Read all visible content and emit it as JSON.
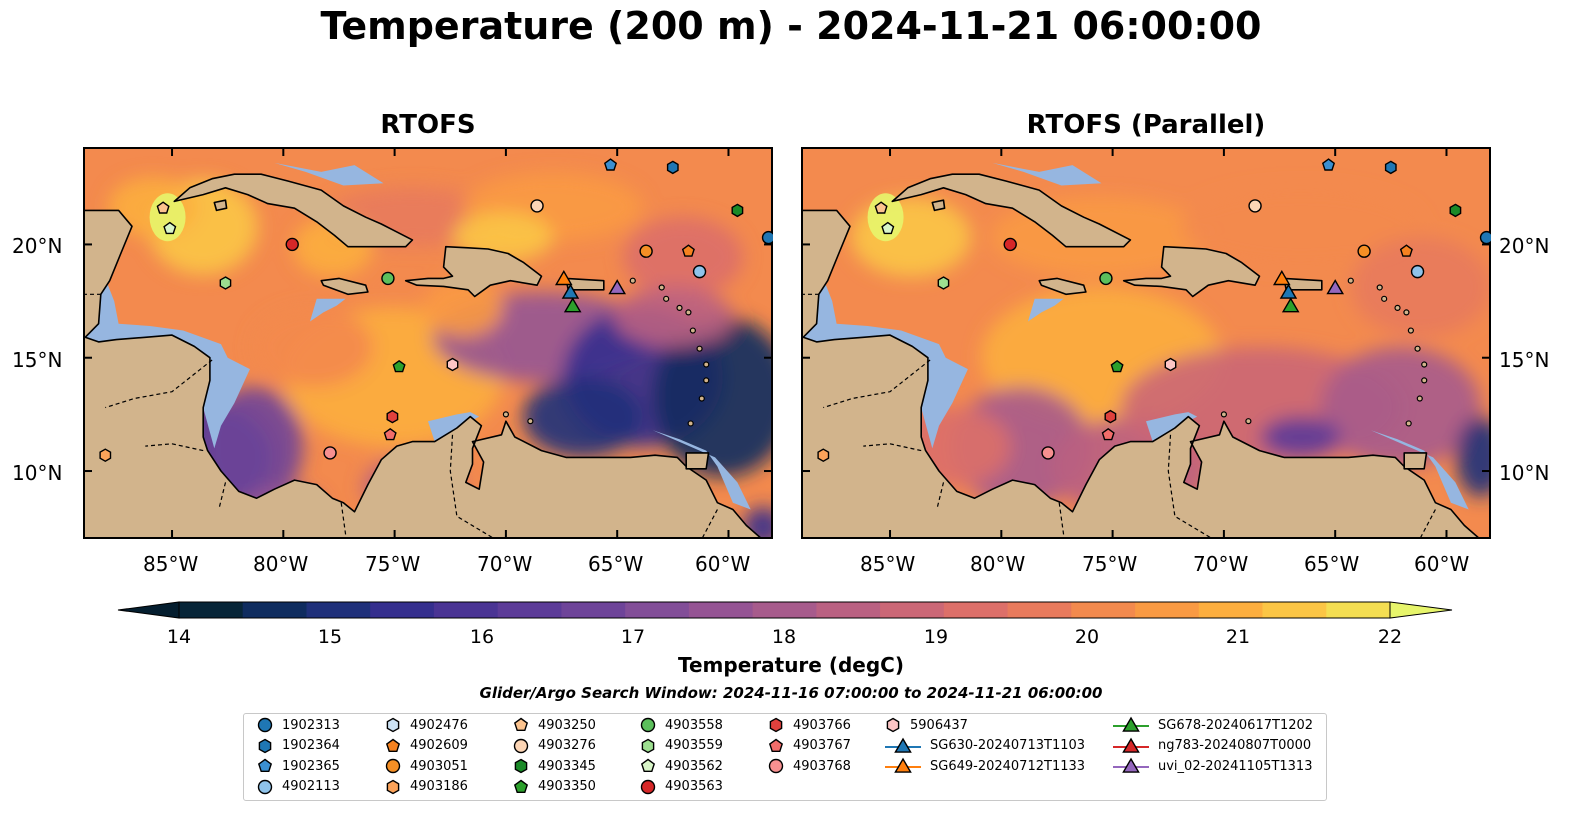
{
  "title": "Temperature (200 m) - 2024-11-21 06:00:00",
  "panels": [
    {
      "title": "RTOFS",
      "variant": "main"
    },
    {
      "title": "RTOFS (Parallel)",
      "variant": "parallel"
    }
  ],
  "map_extent": {
    "lon": [
      -89,
      -58
    ],
    "lat": [
      7,
      24.3
    ]
  },
  "lon_ticks": [
    "85°W",
    "80°W",
    "75°W",
    "70°W",
    "65°W",
    "60°W"
  ],
  "lat_ticks": [
    "20°N",
    "15°N",
    "10°N"
  ],
  "colorbar": {
    "label": "Temperature (degC)",
    "ticks": [
      "14",
      "15",
      "16",
      "17",
      "18",
      "19",
      "20",
      "21",
      "22"
    ],
    "range": [
      14,
      22
    ],
    "colors": [
      "#072538",
      "#0f2c5f",
      "#1f307a",
      "#352f8e",
      "#4a3494",
      "#5c3b98",
      "#6e4499",
      "#824e98",
      "#955494",
      "#a75b8c",
      "#ba6182",
      "#cb6776",
      "#dc6f69",
      "#e87a5c",
      "#f38a4e",
      "#f99a43",
      "#fcae3f",
      "#fbc545",
      "#f4de52"
    ],
    "under_color": "#051e2f",
    "over_color": "#e7f56b"
  },
  "colors": {
    "land": "#d2b48c",
    "shelf": "#96b6e0"
  },
  "search_window": "Glider/Argo Search Window: 2024-11-16 07:00:00 to 2024-11-21 06:00:00",
  "legend": [
    {
      "label": "1902313",
      "marker": "circle",
      "color": "#1f77b4"
    },
    {
      "label": "1902364",
      "marker": "hexagon",
      "color": "#1f77b4"
    },
    {
      "label": "1902365",
      "marker": "pentagon",
      "color": "#3b8fd0"
    },
    {
      "label": "4902113",
      "marker": "circle",
      "color": "#8fc3ea"
    },
    {
      "label": "4902476",
      "marker": "hexagon",
      "color": "#cde3f5"
    },
    {
      "label": "4902609",
      "marker": "pentagon",
      "color": "#f58220"
    },
    {
      "label": "4903051",
      "marker": "circle",
      "color": "#f58f25"
    },
    {
      "label": "4903186",
      "marker": "hexagon",
      "color": "#fca35a"
    },
    {
      "label": "4903250",
      "marker": "pentagon",
      "color": "#fcc38e"
    },
    {
      "label": "4903276",
      "marker": "circle",
      "color": "#fcd5b5"
    },
    {
      "label": "4903345",
      "marker": "hexagon",
      "color": "#1b8a28"
    },
    {
      "label": "4903350",
      "marker": "pentagon",
      "color": "#2ca02c"
    },
    {
      "label": "4903558",
      "marker": "circle",
      "color": "#5cbf5c"
    },
    {
      "label": "4903559",
      "marker": "hexagon",
      "color": "#9ddf90"
    },
    {
      "label": "4903562",
      "marker": "pentagon",
      "color": "#d8f5c8"
    },
    {
      "label": "4903563",
      "marker": "circle",
      "color": "#d62728"
    },
    {
      "label": "4903766",
      "marker": "hexagon",
      "color": "#e0413d"
    },
    {
      "label": "4903767",
      "marker": "pentagon",
      "color": "#f26d6a"
    },
    {
      "label": "4903768",
      "marker": "circle",
      "color": "#f79090"
    },
    {
      "label": "5906437",
      "marker": "hexagon",
      "color": "#fcc5c5"
    },
    {
      "label": "SG630-20240713T1103",
      "marker": "triangle",
      "color": "#1f77b4"
    },
    {
      "label": "SG649-20240712T1133",
      "marker": "triangle",
      "color": "#ff7f0e"
    },
    {
      "label": "SG678-20240617T1202",
      "marker": "triangle",
      "color": "#2ca02c"
    },
    {
      "label": "ng783-20240807T0000",
      "marker": "triangle",
      "color": "#d62728"
    },
    {
      "label": "uvi_02-20241105T1313",
      "marker": "triangle",
      "color": "#9467bd"
    }
  ],
  "observations": [
    {
      "id": "1902313",
      "lon": -58.2,
      "lat": 20.3
    },
    {
      "id": "1902364",
      "lon": -62.5,
      "lat": 23.4
    },
    {
      "id": "1902365",
      "lon": -65.3,
      "lat": 23.5
    },
    {
      "id": "4902113",
      "lon": -61.3,
      "lat": 18.8
    },
    {
      "id": "4902609",
      "lon": -61.8,
      "lat": 19.7
    },
    {
      "id": "4903051",
      "lon": -63.7,
      "lat": 19.7
    },
    {
      "id": "4903186",
      "lon": -88.0,
      "lat": 10.7
    },
    {
      "id": "4903250",
      "lon": -85.4,
      "lat": 21.6
    },
    {
      "id": "4903276",
      "lon": -68.6,
      "lat": 21.7
    },
    {
      "id": "4903345",
      "lon": -59.6,
      "lat": 21.5
    },
    {
      "id": "4903350",
      "lon": -74.8,
      "lat": 14.6
    },
    {
      "id": "4903558",
      "lon": -75.3,
      "lat": 18.5
    },
    {
      "id": "4903559",
      "lon": -82.6,
      "lat": 18.3
    },
    {
      "id": "4903562",
      "lon": -85.1,
      "lat": 20.7
    },
    {
      "id": "4903563",
      "lon": -79.6,
      "lat": 20.0
    },
    {
      "id": "4903766",
      "lon": -75.1,
      "lat": 12.4
    },
    {
      "id": "4903767",
      "lon": -75.2,
      "lat": 11.6
    },
    {
      "id": "4903768",
      "lon": -77.9,
      "lat": 10.8
    },
    {
      "id": "5906437",
      "lon": -72.4,
      "lat": 14.7
    },
    {
      "id": "SG649-20240712T1133",
      "lon": -67.4,
      "lat": 18.5
    },
    {
      "id": "SG630-20240713T1103",
      "lon": -67.1,
      "lat": 17.9
    },
    {
      "id": "SG678-20240617T1202",
      "lon": -67.0,
      "lat": 17.3
    },
    {
      "id": "uvi_02-20241105T1313",
      "lon": -65.0,
      "lat": 18.1
    }
  ]
}
